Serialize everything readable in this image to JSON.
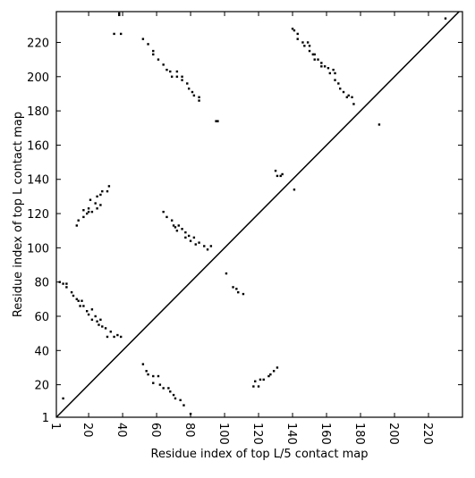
{
  "chart_data": {
    "type": "scatter",
    "x_label": "Residue index of top L/5 contact map",
    "y_label": "Residue index of top L contact map",
    "xlim": [
      1,
      240
    ],
    "ylim": [
      1,
      238
    ],
    "xticks": [
      1,
      20,
      40,
      60,
      80,
      100,
      120,
      140,
      160,
      180,
      200,
      220
    ],
    "yticks": [
      1,
      20,
      40,
      60,
      80,
      100,
      120,
      140,
      160,
      180,
      200,
      220
    ],
    "color": "#000000",
    "x": [
      38,
      38,
      35,
      39,
      52,
      55,
      58,
      58,
      61,
      64,
      66,
      68,
      69,
      72,
      72,
      75,
      75,
      78,
      79,
      81,
      82,
      85,
      85,
      95,
      96,
      140,
      141,
      143,
      143,
      146,
      147,
      149,
      150,
      150,
      152,
      153,
      153,
      155,
      157,
      157,
      159,
      161,
      162,
      164,
      165,
      165,
      167,
      168,
      170,
      172,
      173,
      175,
      176,
      191,
      130,
      131,
      133,
      134,
      141,
      13,
      14,
      17,
      17,
      19,
      20,
      20,
      21,
      22,
      24,
      25,
      25,
      27,
      27,
      28,
      31,
      32,
      64,
      66,
      69,
      70,
      71,
      72,
      73,
      75,
      77,
      77,
      79,
      80,
      82,
      83,
      85,
      88,
      90,
      92,
      3,
      5,
      7,
      7,
      10,
      11,
      13,
      14,
      15,
      16,
      17,
      19,
      20,
      22,
      22,
      24,
      25,
      26,
      27,
      28,
      30,
      31,
      33,
      35,
      37,
      39,
      5,
      52,
      54,
      55,
      58,
      58,
      61,
      62,
      64,
      67,
      68,
      70,
      71,
      74,
      76,
      80,
      101,
      105,
      107,
      108,
      111,
      117,
      118,
      120,
      121,
      123,
      126,
      127,
      129,
      131,
      230
    ],
    "y": [
      236,
      237,
      225,
      225,
      222,
      219,
      215,
      213,
      210,
      207,
      204,
      203,
      200,
      203,
      200,
      200,
      198,
      196,
      193,
      191,
      189,
      188,
      186,
      174,
      174,
      228,
      227,
      225,
      222,
      220,
      218,
      220,
      218,
      215,
      213,
      210,
      213,
      210,
      208,
      206,
      206,
      205,
      202,
      204,
      202,
      198,
      196,
      193,
      191,
      188,
      189,
      188,
      184,
      172,
      145,
      142,
      142,
      143,
      134,
      113,
      116,
      118,
      122,
      120,
      123,
      121,
      128,
      121,
      126,
      123,
      130,
      125,
      131,
      133,
      133,
      136,
      121,
      118,
      116,
      113,
      112,
      110,
      113,
      111,
      109,
      106,
      107,
      104,
      106,
      102,
      103,
      101,
      99,
      101,
      80,
      79,
      79,
      77,
      74,
      72,
      70,
      69,
      66,
      69,
      66,
      63,
      61,
      64,
      58,
      60,
      57,
      55,
      58,
      54,
      53,
      48,
      51,
      48,
      49,
      48,
      12,
      32,
      28,
      26,
      25,
      21,
      25,
      20,
      18,
      18,
      16,
      14,
      12,
      11,
      8,
      3,
      85,
      77,
      76,
      74,
      73,
      19,
      22,
      19,
      23,
      23,
      25,
      26,
      28,
      30,
      234
    ]
  }
}
